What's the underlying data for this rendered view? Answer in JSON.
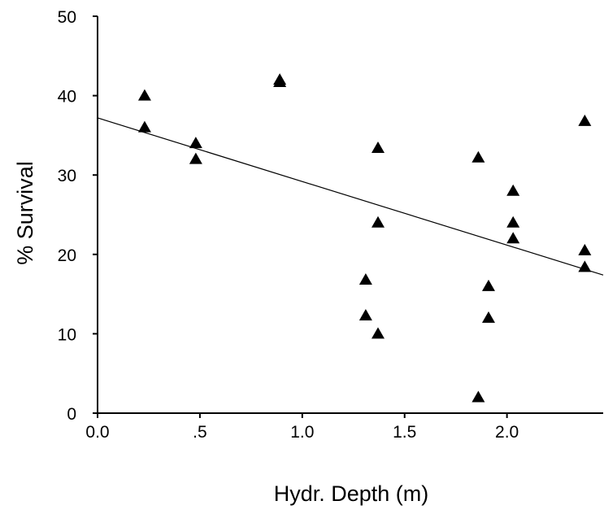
{
  "chart_data": {
    "type": "scatter",
    "title": "",
    "xlabel": "Hydr. Depth (m)",
    "ylabel": "% Survival",
    "xlim": [
      0,
      2.47
    ],
    "ylim": [
      0,
      50
    ],
    "x_ticks": [
      0,
      0.5,
      1.0,
      1.5,
      2.0
    ],
    "x_tick_labels": [
      "0.0",
      ".5",
      "1.0",
      "1.5",
      "2.0"
    ],
    "y_ticks": [
      0,
      10,
      20,
      30,
      40,
      50
    ],
    "y_tick_labels": [
      "0",
      "10",
      "20",
      "30",
      "40",
      "50"
    ],
    "grid": false,
    "marker": "triangle",
    "series": [
      {
        "points": [
          {
            "x": 0.23,
            "y": 40.0
          },
          {
            "x": 0.23,
            "y": 36.0
          },
          {
            "x": 0.48,
            "y": 34.0
          },
          {
            "x": 0.48,
            "y": 32.0
          },
          {
            "x": 0.89,
            "y": 42.0
          },
          {
            "x": 0.89,
            "y": 41.7
          },
          {
            "x": 1.31,
            "y": 16.8
          },
          {
            "x": 1.31,
            "y": 12.3
          },
          {
            "x": 1.37,
            "y": 33.4
          },
          {
            "x": 1.37,
            "y": 24.0
          },
          {
            "x": 1.37,
            "y": 10.0
          },
          {
            "x": 1.86,
            "y": 32.2
          },
          {
            "x": 1.86,
            "y": 2.0
          },
          {
            "x": 1.91,
            "y": 16.0
          },
          {
            "x": 1.91,
            "y": 12.0
          },
          {
            "x": 2.03,
            "y": 28.0
          },
          {
            "x": 2.03,
            "y": 24.0
          },
          {
            "x": 2.03,
            "y": 22.0
          },
          {
            "x": 2.38,
            "y": 36.8
          },
          {
            "x": 2.38,
            "y": 20.5
          },
          {
            "x": 2.38,
            "y": 18.4
          }
        ]
      }
    ],
    "fit_line": {
      "x0": 0,
      "y0": 37.2,
      "x1": 2.47,
      "y1": 17.4
    }
  }
}
